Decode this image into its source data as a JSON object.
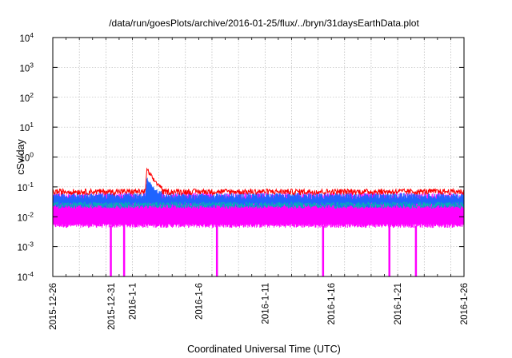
{
  "chart_data": {
    "type": "line",
    "title": "/data/run/goesPlots/archive/2016-01-25/flux/../bryn/31daysEarthData.plot",
    "xlabel": "Coordinated Universal Time (UTC)",
    "ylabel": "cSv/day",
    "y_scale": "log",
    "ylim": [
      0.0001,
      10000
    ],
    "xlim": [
      "2015-12-26",
      "2016-01-26"
    ],
    "grid": true,
    "legend": "none",
    "x_tick_labels": [
      "2015-12-26",
      "2015-12-31",
      "2016-1-1",
      "2016-1-6",
      "2016-1-11",
      "2016-1-16",
      "2016-1-21",
      "2016-1-26"
    ],
    "y_ticks": [
      {
        "base": "10",
        "exp": "-4"
      },
      {
        "base": "10",
        "exp": "-3"
      },
      {
        "base": "10",
        "exp": "-2"
      },
      {
        "base": "10",
        "exp": "-1"
      },
      {
        "base": "10",
        "exp": "0"
      },
      {
        "base": "10",
        "exp": "1"
      },
      {
        "base": "10",
        "exp": "2"
      },
      {
        "base": "10",
        "exp": "3"
      },
      {
        "base": "10",
        "exp": "4"
      }
    ],
    "series": [
      {
        "color": "#ff0000",
        "values_summary": {
          "baseline": 0.07,
          "peak": 0.45,
          "peak_date": "2016-01-02"
        }
      },
      {
        "color": "#1e64ff",
        "values_summary": {
          "baseline": 0.05,
          "peak": 0.2,
          "peak_date": "2016-01-02"
        }
      },
      {
        "color": "#00b4b4",
        "values_summary": {
          "baseline": 0.025
        }
      },
      {
        "color": "#ff00ff",
        "values_summary": {
          "floor": 0.005,
          "ceiling": 0.05,
          "dropouts": [
            "2015-12-30",
            "2015-12-31",
            "2016-01-07",
            "2016-01-15",
            "2016-01-20",
            "2016-01-22"
          ]
        }
      }
    ]
  }
}
